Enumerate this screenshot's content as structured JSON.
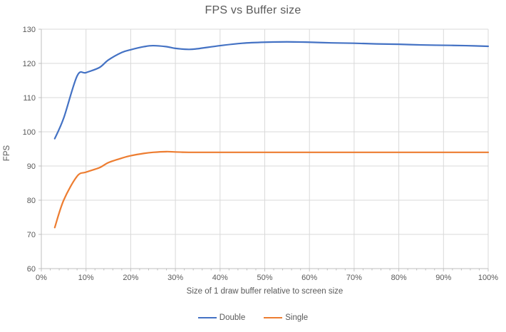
{
  "title": "FPS vs Buffer size",
  "theme": {
    "background": "#FFFFFF",
    "text_color": "#595959",
    "gridline_color": "#D9D9D9",
    "axis_line_color": "#BFBFBF",
    "series_blue": "#4472C4",
    "series_orange": "#ED7D31"
  },
  "chart_data": {
    "type": "line",
    "title": "FPS vs Buffer size",
    "xlabel": "Size of 1 draw buffer relative to screen size",
    "ylabel": "FPS",
    "xlim": [
      0,
      100
    ],
    "ylim": [
      60,
      130
    ],
    "x_tick_labels": [
      "0%",
      "10%",
      "20%",
      "30%",
      "40%",
      "50%",
      "60%",
      "70%",
      "80%",
      "90%",
      "100%"
    ],
    "x_major_tick_values": [
      0,
      10,
      20,
      30,
      40,
      50,
      60,
      70,
      80,
      90,
      100
    ],
    "x_minor_tick_step": 2,
    "y_tick_values": [
      60,
      70,
      80,
      90,
      100,
      110,
      120,
      130
    ],
    "grid": true,
    "smooth_lines": true,
    "legend_position": "bottom-center",
    "x": [
      3,
      5,
      8,
      10,
      13,
      15,
      18,
      20,
      23,
      25,
      28,
      30,
      33,
      35,
      40,
      45,
      50,
      55,
      60,
      65,
      70,
      75,
      80,
      85,
      90,
      95,
      100
    ],
    "series": [
      {
        "name": "Double",
        "color": "#4472C4",
        "values": [
          98,
          104,
          116.3,
          117.3,
          118.8,
          121,
          123.2,
          124,
          124.9,
          125.2,
          124.9,
          124.4,
          124.1,
          124.3,
          125.2,
          125.9,
          126.2,
          126.3,
          126.2,
          126,
          125.9,
          125.7,
          125.6,
          125.4,
          125.3,
          125.2,
          125
        ]
      },
      {
        "name": "Single",
        "color": "#ED7D31",
        "values": [
          72,
          80,
          87,
          88.2,
          89.5,
          91,
          92.3,
          93,
          93.7,
          94,
          94.2,
          94.1,
          94,
          94,
          94,
          94,
          94,
          94,
          94,
          94,
          94,
          94,
          94,
          94,
          94,
          94,
          94
        ]
      }
    ]
  }
}
